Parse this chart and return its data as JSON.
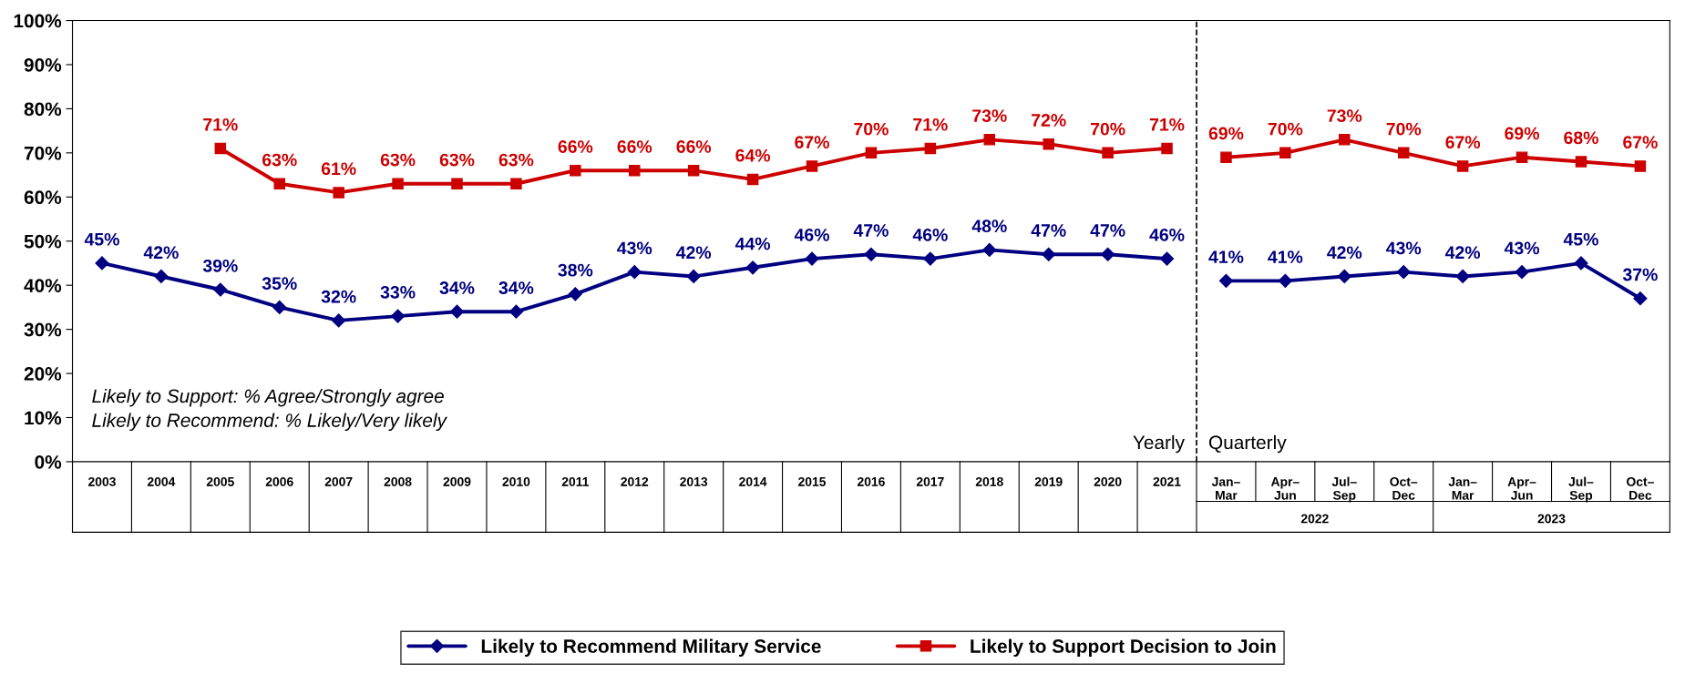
{
  "chart_data": {
    "type": "line",
    "categories": [
      "2003",
      "2004",
      "2005",
      "2006",
      "2007",
      "2008",
      "2009",
      "2010",
      "2011",
      "2012",
      "2013",
      "2014",
      "2015",
      "2016",
      "2017",
      "2018",
      "2019",
      "2020",
      "2021",
      "Jan–Mar",
      "Apr–Jun",
      "Jul–Sep",
      "Oct–Dec",
      "Jan–Mar",
      "Apr–Jun",
      "Jul–Sep",
      "Oct–Dec"
    ],
    "series": [
      {
        "name": "Likely to Recommend Military Service",
        "color": "#000080",
        "marker": "diamond",
        "values": [
          45,
          42,
          39,
          35,
          32,
          33,
          34,
          34,
          38,
          43,
          42,
          44,
          46,
          47,
          46,
          48,
          47,
          47,
          46,
          null,
          null,
          null,
          null,
          null,
          null,
          null,
          null
        ],
        "value_labels": [
          "45%",
          "42%",
          "39%",
          "35%",
          "32%",
          "33%",
          "34%",
          "34%",
          "38%",
          "43%",
          "42%",
          "44%",
          "46%",
          "47%",
          "46%",
          "48%",
          "47%",
          "47%",
          "46%",
          null,
          null,
          null,
          null,
          null,
          null,
          null,
          null
        ]
      },
      {
        "name": "Likely to Support Decision to Join",
        "color": "#cc0000",
        "marker": "square",
        "values": [
          null,
          null,
          71,
          63,
          61,
          63,
          63,
          63,
          66,
          66,
          66,
          64,
          67,
          70,
          71,
          73,
          72,
          70,
          71,
          null,
          null,
          null,
          null,
          null,
          null,
          null,
          null
        ],
        "value_labels": [
          null,
          null,
          "71%",
          "63%",
          "61%",
          "63%",
          "63%",
          "63%",
          "66%",
          "66%",
          "66%",
          "64%",
          "67%",
          "70%",
          "71%",
          "73%",
          "72%",
          "70%",
          "71%",
          null,
          null,
          null,
          null,
          null,
          null,
          null,
          null
        ]
      },
      {
        "color": "#000080",
        "marker": "diamond",
        "values": [
          null,
          null,
          null,
          null,
          null,
          null,
          null,
          null,
          null,
          null,
          null,
          null,
          null,
          null,
          null,
          null,
          null,
          null,
          null,
          41,
          41,
          42,
          43,
          42,
          43,
          45,
          37
        ],
        "value_labels": [
          null,
          null,
          null,
          null,
          null,
          null,
          null,
          null,
          null,
          null,
          null,
          null,
          null,
          null,
          null,
          null,
          null,
          null,
          null,
          "41%",
          "41%",
          "42%",
          "43%",
          "42%",
          "43%",
          "45%",
          "37%"
        ]
      },
      {
        "color": "#cc0000",
        "marker": "square",
        "values": [
          null,
          null,
          null,
          null,
          null,
          null,
          null,
          null,
          null,
          null,
          null,
          null,
          null,
          null,
          null,
          null,
          null,
          null,
          null,
          69,
          70,
          73,
          70,
          67,
          69,
          68,
          67
        ],
        "value_labels": [
          null,
          null,
          null,
          null,
          null,
          null,
          null,
          null,
          null,
          null,
          null,
          null,
          null,
          null,
          null,
          null,
          null,
          null,
          null,
          "69%",
          "70%",
          "73%",
          "70%",
          "67%",
          "69%",
          "68%",
          "67%"
        ]
      }
    ],
    "ylim": [
      0,
      100
    ],
    "yticks": [
      {
        "value": 0,
        "label": "0%"
      },
      {
        "value": 10,
        "label": "10%"
      },
      {
        "value": 20,
        "label": "20%"
      },
      {
        "value": 30,
        "label": "30%"
      },
      {
        "value": 40,
        "label": "40%"
      },
      {
        "value": 50,
        "label": "50%"
      },
      {
        "value": 60,
        "label": "60%"
      },
      {
        "value": 70,
        "label": "70%"
      },
      {
        "value": 80,
        "label": "80%"
      },
      {
        "value": 90,
        "label": "90%"
      },
      {
        "value": 100,
        "label": "100%"
      }
    ],
    "grid": false,
    "legend": "bottom",
    "line_style": "solid",
    "annotations": [
      "Likely to Support: % Agree/Strongly agree",
      "Likely to Recommend: % Likely/Very likely",
      "Yearly",
      "Quarterly",
      "2022",
      "2023"
    ]
  }
}
